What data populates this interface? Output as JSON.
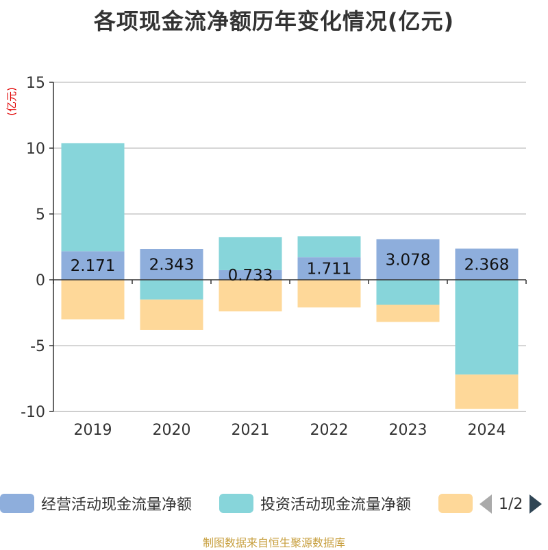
{
  "title": "各项现金流净额历年变化情况(亿元)",
  "source": "制图数据来自恒生聚源数据库",
  "chart_data": {
    "type": "bar",
    "stacked": true,
    "unit_label": "(亿元)",
    "categories": [
      "2019",
      "2020",
      "2021",
      "2022",
      "2023",
      "2024"
    ],
    "ylim": [
      -10,
      15
    ],
    "yticks": [
      15,
      10,
      5,
      0,
      -5,
      -10
    ],
    "grid": true,
    "legend_position": "bottom",
    "series": [
      {
        "name": "经营活动现金流量净额",
        "color": "#8eaedc",
        "values": [
          2.171,
          2.343,
          0.733,
          1.711,
          3.078,
          2.368
        ],
        "show_labels": true
      },
      {
        "name": "投资活动现金流量净额",
        "color": "#87d5da",
        "values": [
          8.2,
          -1.5,
          2.5,
          1.6,
          -1.9,
          -7.2
        ],
        "show_labels": false
      },
      {
        "name": "",
        "color": "#fed899",
        "values": [
          -3.0,
          -2.3,
          -2.4,
          -2.1,
          -1.3,
          -2.6
        ],
        "show_labels": false
      }
    ]
  },
  "legend": {
    "items": [
      {
        "label": "经营活动现金流量净额",
        "color": "#8eaedc"
      },
      {
        "label": "投资活动现金流量净额",
        "color": "#87d5da"
      },
      {
        "label": "",
        "color": "#fed899"
      }
    ],
    "page_text": "1/2"
  }
}
